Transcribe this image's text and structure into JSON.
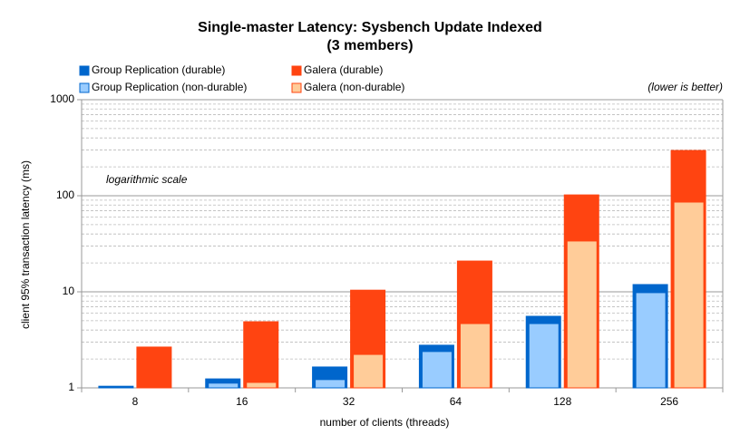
{
  "chart_data": {
    "type": "bar",
    "title": "Single-master Latency: Sysbench Update Indexed",
    "subtitle": "(3 members)",
    "x_label": "number of clients (threads)",
    "y_label": "client 95% transaction latency (ms)",
    "annotations": [
      "logarithmic scale",
      "(lower is better)"
    ],
    "categories": [
      "8",
      "16",
      "32",
      "64",
      "128",
      "256"
    ],
    "series": [
      {
        "name": "Group Replication (durable)",
        "color": "#0066cc",
        "values": [
          1.04,
          1.24,
          1.65,
          2.78,
          5.56,
          11.9
        ]
      },
      {
        "name": "Group Replication (non-durable)",
        "color": "#99ccff",
        "values": [
          1.01,
          1.12,
          1.22,
          2.39,
          4.67,
          9.8
        ]
      },
      {
        "name": "Galera  (durable)",
        "color": "#ff4411",
        "values": [
          2.66,
          4.88,
          10.4,
          20.9,
          102,
          296
        ]
      },
      {
        "name": "Galera  (non-durable)",
        "color": "#ffcc99",
        "values": [
          1.02,
          1.14,
          2.23,
          4.67,
          33.8,
          85.9
        ]
      }
    ],
    "log_scale": true,
    "ylim": [
      1,
      1000
    ],
    "yticks": [
      1,
      10,
      100,
      1000
    ],
    "grid": true,
    "minor_grid": true
  }
}
